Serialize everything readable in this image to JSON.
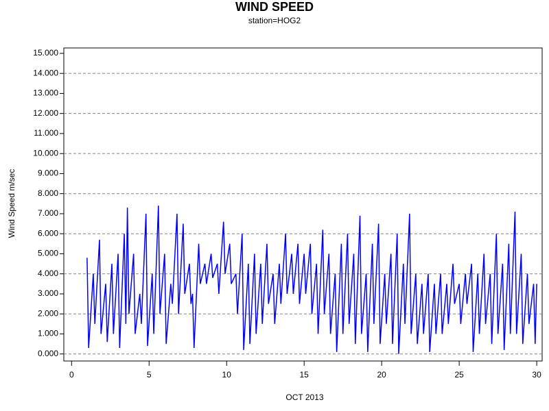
{
  "chart_data": {
    "type": "line",
    "title": "WIND SPEED",
    "subtitle": "station=HOG2",
    "x_label": "OCT 2013",
    "y_label": "Wind Speed m/sec",
    "color": "#0000ff",
    "xlim": [
      -0.5,
      30.35
    ],
    "ylim": [
      -0.35,
      15.27
    ],
    "xticks": [
      0,
      5,
      10,
      15,
      20,
      25,
      30
    ],
    "yticks": [
      {
        "value": 0,
        "label": "0.000"
      },
      {
        "value": 1,
        "label": "1.000"
      },
      {
        "value": 2,
        "label": "2.000"
      },
      {
        "value": 3,
        "label": "3.000"
      },
      {
        "value": 4,
        "label": "4.000"
      },
      {
        "value": 5,
        "label": "5.000"
      },
      {
        "value": 6,
        "label": "6.000"
      },
      {
        "value": 7,
        "label": "7.000"
      },
      {
        "value": 8,
        "label": "8.000"
      },
      {
        "value": 9,
        "label": "9.000"
      },
      {
        "value": 10,
        "label": "10.000"
      },
      {
        "value": 11,
        "label": "11.000"
      },
      {
        "value": 12,
        "label": "12.000"
      },
      {
        "value": 13,
        "label": "13.000"
      },
      {
        "value": 14,
        "label": "14.000"
      },
      {
        "value": 15,
        "label": "15.000"
      }
    ],
    "ygrid": [
      0,
      2,
      4,
      6,
      8,
      10,
      12,
      14
    ],
    "x": [
      1.0,
      1.1,
      1.4,
      1.5,
      1.8,
      1.9,
      2.2,
      2.3,
      2.6,
      2.7,
      3.0,
      3.1,
      3.4,
      3.5,
      3.6,
      3.7,
      4.0,
      4.1,
      4.4,
      4.5,
      4.8,
      4.9,
      5.2,
      5.3,
      5.6,
      5.7,
      6.0,
      6.1,
      6.4,
      6.5,
      6.8,
      6.9,
      7.2,
      7.3,
      7.6,
      7.7,
      7.8,
      7.9,
      8.2,
      8.3,
      8.6,
      8.7,
      9.0,
      9.1,
      9.4,
      9.5,
      9.8,
      9.9,
      10.2,
      10.3,
      10.6,
      10.7,
      11.0,
      11.1,
      11.4,
      11.5,
      11.8,
      11.9,
      12.2,
      12.3,
      12.6,
      12.7,
      13.0,
      13.1,
      13.4,
      13.5,
      13.8,
      13.9,
      14.2,
      14.3,
      14.6,
      14.7,
      15.0,
      15.1,
      15.4,
      15.5,
      15.8,
      15.9,
      16.2,
      16.3,
      16.6,
      16.7,
      17.0,
      17.1,
      17.4,
      17.5,
      17.8,
      17.9,
      18.2,
      18.3,
      18.6,
      18.7,
      19.0,
      19.1,
      19.4,
      19.5,
      19.8,
      19.9,
      20.2,
      20.3,
      20.6,
      20.7,
      21.0,
      21.1,
      21.4,
      21.5,
      21.8,
      21.9,
      22.2,
      22.3,
      22.6,
      22.7,
      23.0,
      23.1,
      23.4,
      23.5,
      23.8,
      23.9,
      24.2,
      24.3,
      24.6,
      24.7,
      25.0,
      25.1,
      25.4,
      25.5,
      25.8,
      25.9,
      26.2,
      26.3,
      26.6,
      26.7,
      27.0,
      27.1,
      27.4,
      27.5,
      27.8,
      27.9,
      28.2,
      28.3,
      28.6,
      28.7,
      29.0,
      29.1,
      29.4,
      29.5,
      29.8,
      29.9,
      30.0
    ],
    "values": [
      4.8,
      0.3,
      4.0,
      1.5,
      5.7,
      1.0,
      3.5,
      0.6,
      4.5,
      1.0,
      5.0,
      0.3,
      6.0,
      1.5,
      7.3,
      2.0,
      5.0,
      1.0,
      3.0,
      1.5,
      7.0,
      0.4,
      4.0,
      1.0,
      7.4,
      2.0,
      5.0,
      0.5,
      3.5,
      2.5,
      7.0,
      2.0,
      6.5,
      3.0,
      4.5,
      2.5,
      3.0,
      0.3,
      5.5,
      3.5,
      4.5,
      3.5,
      5.0,
      3.8,
      4.5,
      3.0,
      6.6,
      4.0,
      5.5,
      3.5,
      4.0,
      2.0,
      6.0,
      0.2,
      4.5,
      0.5,
      5.0,
      1.0,
      4.5,
      1.5,
      5.5,
      2.5,
      4.0,
      1.5,
      4.5,
      2.5,
      6.0,
      3.0,
      5.0,
      3.0,
      5.5,
      2.5,
      5.0,
      3.0,
      5.5,
      2.0,
      4.5,
      1.0,
      6.2,
      2.0,
      5.0,
      1.0,
      4.0,
      0.1,
      5.5,
      1.0,
      6.0,
      1.5,
      5.0,
      0.5,
      6.9,
      1.0,
      4.0,
      0.1,
      5.5,
      1.5,
      6.5,
      0.5,
      4.0,
      1.5,
      5.0,
      0.5,
      6.0,
      0.0,
      4.5,
      1.5,
      7.0,
      1.0,
      4.0,
      0.5,
      3.5,
      1.0,
      4.0,
      0.1,
      3.5,
      1.0,
      4.0,
      1.0,
      3.5,
      1.5,
      4.5,
      2.5,
      3.5,
      1.5,
      4.0,
      2.5,
      4.5,
      0.1,
      4.0,
      1.0,
      5.0,
      1.5,
      4.0,
      0.5,
      6.0,
      1.0,
      4.5,
      0.2,
      5.5,
      1.0,
      7.1,
      1.0,
      5.0,
      0.5,
      4.0,
      1.5,
      3.5,
      0.5,
      3.5
    ]
  }
}
